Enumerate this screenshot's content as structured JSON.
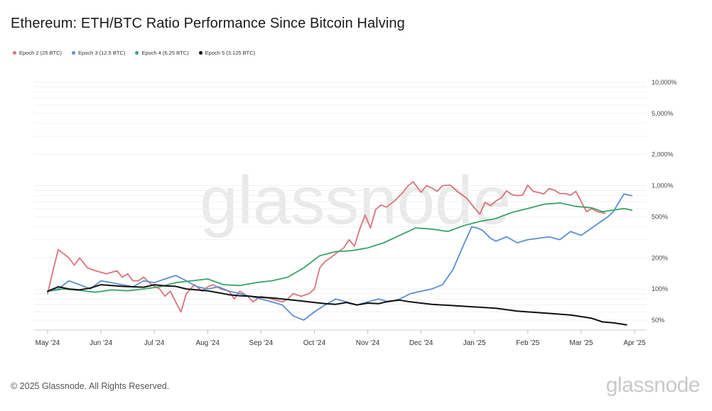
{
  "title": "Ethereum: ETH/BTC Ratio Performance Since Bitcoin Halving",
  "copyright": "© 2025 Glassnode. All Rights Reserved.",
  "logo_text": "glassnode",
  "watermark_text": "glassnode",
  "chart_data": {
    "type": "line",
    "title": "Ethereum: ETH/BTC Ratio Performance Since Bitcoin Halving",
    "xlabel": "",
    "ylabel": "",
    "yscale": "log",
    "ylim": [
      40,
      10000
    ],
    "grid": true,
    "legend_position": "top-left",
    "y_axis_side": "right",
    "x_ticks": [
      "May '24",
      "Jun '24",
      "Jul '24",
      "Aug '24",
      "Sep '24",
      "Oct '24",
      "Nov '24",
      "Dec '24",
      "Jan '25",
      "Feb '25",
      "Mar '25",
      "Apr '25"
    ],
    "y_ticks": [
      {
        "value": 10000,
        "label": "10,000%"
      },
      {
        "value": 5000,
        "label": "5,000%"
      },
      {
        "value": 2000,
        "label": "2,000%"
      },
      {
        "value": 1000,
        "label": "1,000%"
      },
      {
        "value": 500,
        "label": "500%"
      },
      {
        "value": 200,
        "label": "200%"
      },
      {
        "value": 100,
        "label": "100%"
      },
      {
        "value": 50,
        "label": "50%"
      }
    ],
    "series": [
      {
        "name": "Epoch 2 (25 BTC)",
        "color": "#d9737a",
        "x": [
          0,
          0.1,
          0.2,
          0.4,
          0.5,
          0.6,
          0.75,
          0.9,
          1.1,
          1.3,
          1.4,
          1.5,
          1.6,
          1.7,
          1.8,
          1.95,
          2.1,
          2.2,
          2.3,
          2.4,
          2.5,
          2.6,
          2.75,
          2.9,
          3.0,
          3.1,
          3.25,
          3.4,
          3.5,
          3.6,
          3.75,
          3.85,
          4.0,
          4.2,
          4.4,
          4.5,
          4.6,
          4.75,
          4.9,
          5.0,
          5.1,
          5.2,
          5.3,
          5.4,
          5.55,
          5.65,
          5.75,
          5.85,
          5.95,
          6.05,
          6.15,
          6.25,
          6.35,
          6.5,
          6.65,
          6.75,
          6.85,
          7.0,
          7.1,
          7.2,
          7.3,
          7.4,
          7.55,
          7.7,
          7.85,
          8.0,
          8.1,
          8.2,
          8.3,
          8.4,
          8.5,
          8.6,
          8.7,
          8.8,
          8.9,
          9.0,
          9.1,
          9.2,
          9.3,
          9.4,
          9.5,
          9.6,
          9.7,
          9.8,
          9.9,
          10.0,
          10.1,
          10.2,
          10.3,
          10.45
        ],
        "values": [
          90,
          150,
          240,
          200,
          170,
          200,
          160,
          150,
          140,
          150,
          130,
          140,
          120,
          120,
          130,
          110,
          100,
          85,
          95,
          75,
          60,
          90,
          110,
          95,
          105,
          110,
          100,
          95,
          80,
          95,
          85,
          75,
          85,
          80,
          75,
          80,
          90,
          85,
          90,
          100,
          160,
          185,
          200,
          220,
          250,
          300,
          260,
          380,
          520,
          390,
          590,
          650,
          620,
          710,
          850,
          990,
          1090,
          860,
          1000,
          950,
          880,
          1000,
          1010,
          860,
          760,
          610,
          530,
          690,
          640,
          710,
          760,
          890,
          820,
          800,
          810,
          1010,
          880,
          860,
          830,
          940,
          900,
          840,
          840,
          810,
          880,
          700,
          560,
          600,
          560,
          540
        ],
        "last_shown_x": 10.45
      },
      {
        "name": "Epoch 3 (12.5 BTC)",
        "color": "#5b8fd4",
        "x": [
          0,
          0.2,
          0.4,
          0.6,
          0.8,
          1.0,
          1.2,
          1.4,
          1.6,
          1.8,
          2.0,
          2.2,
          2.4,
          2.6,
          2.8,
          3.0,
          3.2,
          3.4,
          3.6,
          3.8,
          4.0,
          4.2,
          4.4,
          4.6,
          4.8,
          5.0,
          5.2,
          5.4,
          5.6,
          5.8,
          6.0,
          6.2,
          6.4,
          6.6,
          6.8,
          7.0,
          7.2,
          7.4,
          7.6,
          7.8,
          7.95,
          8.05,
          8.15,
          8.3,
          8.4,
          8.6,
          8.8,
          9.0,
          9.2,
          9.4,
          9.6,
          9.8,
          10.0,
          10.2,
          10.4,
          10.5,
          10.6,
          10.7,
          10.8,
          10.95
        ],
        "values": [
          95,
          100,
          120,
          110,
          100,
          120,
          115,
          110,
          105,
          120,
          115,
          125,
          135,
          120,
          105,
          100,
          105,
          95,
          90,
          85,
          80,
          75,
          70,
          55,
          50,
          60,
          70,
          80,
          75,
          70,
          75,
          80,
          75,
          80,
          90,
          95,
          100,
          110,
          155,
          270,
          400,
          390,
          370,
          310,
          290,
          320,
          280,
          300,
          310,
          320,
          300,
          360,
          330,
          390,
          460,
          500,
          560,
          680,
          830,
          800
        ],
        "last_shown_x": 10.95
      },
      {
        "name": "Epoch 4 (6.25 BTC)",
        "color": "#3aa366",
        "x": [
          0,
          0.3,
          0.6,
          0.9,
          1.2,
          1.5,
          1.8,
          2.1,
          2.4,
          2.7,
          3.0,
          3.3,
          3.6,
          3.9,
          4.2,
          4.5,
          4.8,
          5.1,
          5.4,
          5.7,
          6.0,
          6.3,
          6.6,
          6.9,
          7.2,
          7.5,
          7.8,
          8.1,
          8.4,
          8.7,
          9.0,
          9.3,
          9.6,
          9.9,
          10.2,
          10.4,
          10.6,
          10.8,
          10.95
        ],
        "values": [
          95,
          100,
          97,
          93,
          98,
          96,
          100,
          105,
          115,
          120,
          125,
          110,
          108,
          115,
          120,
          130,
          160,
          210,
          230,
          235,
          250,
          280,
          330,
          390,
          380,
          360,
          410,
          450,
          480,
          550,
          600,
          660,
          680,
          630,
          610,
          560,
          580,
          600,
          580
        ],
        "last_shown_x": 10.95
      },
      {
        "name": "Epoch 5 (3.125 BTC)",
        "color": "#111111",
        "x": [
          0,
          0.2,
          0.4,
          0.6,
          0.8,
          1.0,
          1.2,
          1.4,
          1.6,
          1.8,
          2.0,
          2.2,
          2.4,
          2.6,
          2.8,
          3.0,
          3.2,
          3.4,
          3.6,
          3.8,
          4.0,
          4.2,
          4.4,
          4.6,
          4.8,
          5.0,
          5.2,
          5.4,
          5.6,
          5.8,
          6.0,
          6.2,
          6.4,
          6.6,
          6.8,
          7.0,
          7.2,
          7.4,
          7.6,
          7.8,
          8.0,
          8.2,
          8.4,
          8.6,
          8.8,
          9.0,
          9.2,
          9.4,
          9.6,
          9.8,
          10.0,
          10.2,
          10.4,
          10.6,
          10.85
        ],
        "values": [
          95,
          105,
          100,
          98,
          102,
          110,
          108,
          106,
          105,
          104,
          110,
          107,
          106,
          100,
          98,
          96,
          92,
          88,
          86,
          85,
          83,
          82,
          80,
          78,
          76,
          74,
          72,
          71,
          74,
          70,
          73,
          72,
          76,
          78,
          75,
          73,
          71,
          70,
          69,
          68,
          67,
          66,
          65,
          63,
          61,
          60,
          59,
          58,
          57,
          56,
          54,
          52,
          48,
          47,
          45
        ],
        "last_shown_x": 10.85
      }
    ]
  }
}
